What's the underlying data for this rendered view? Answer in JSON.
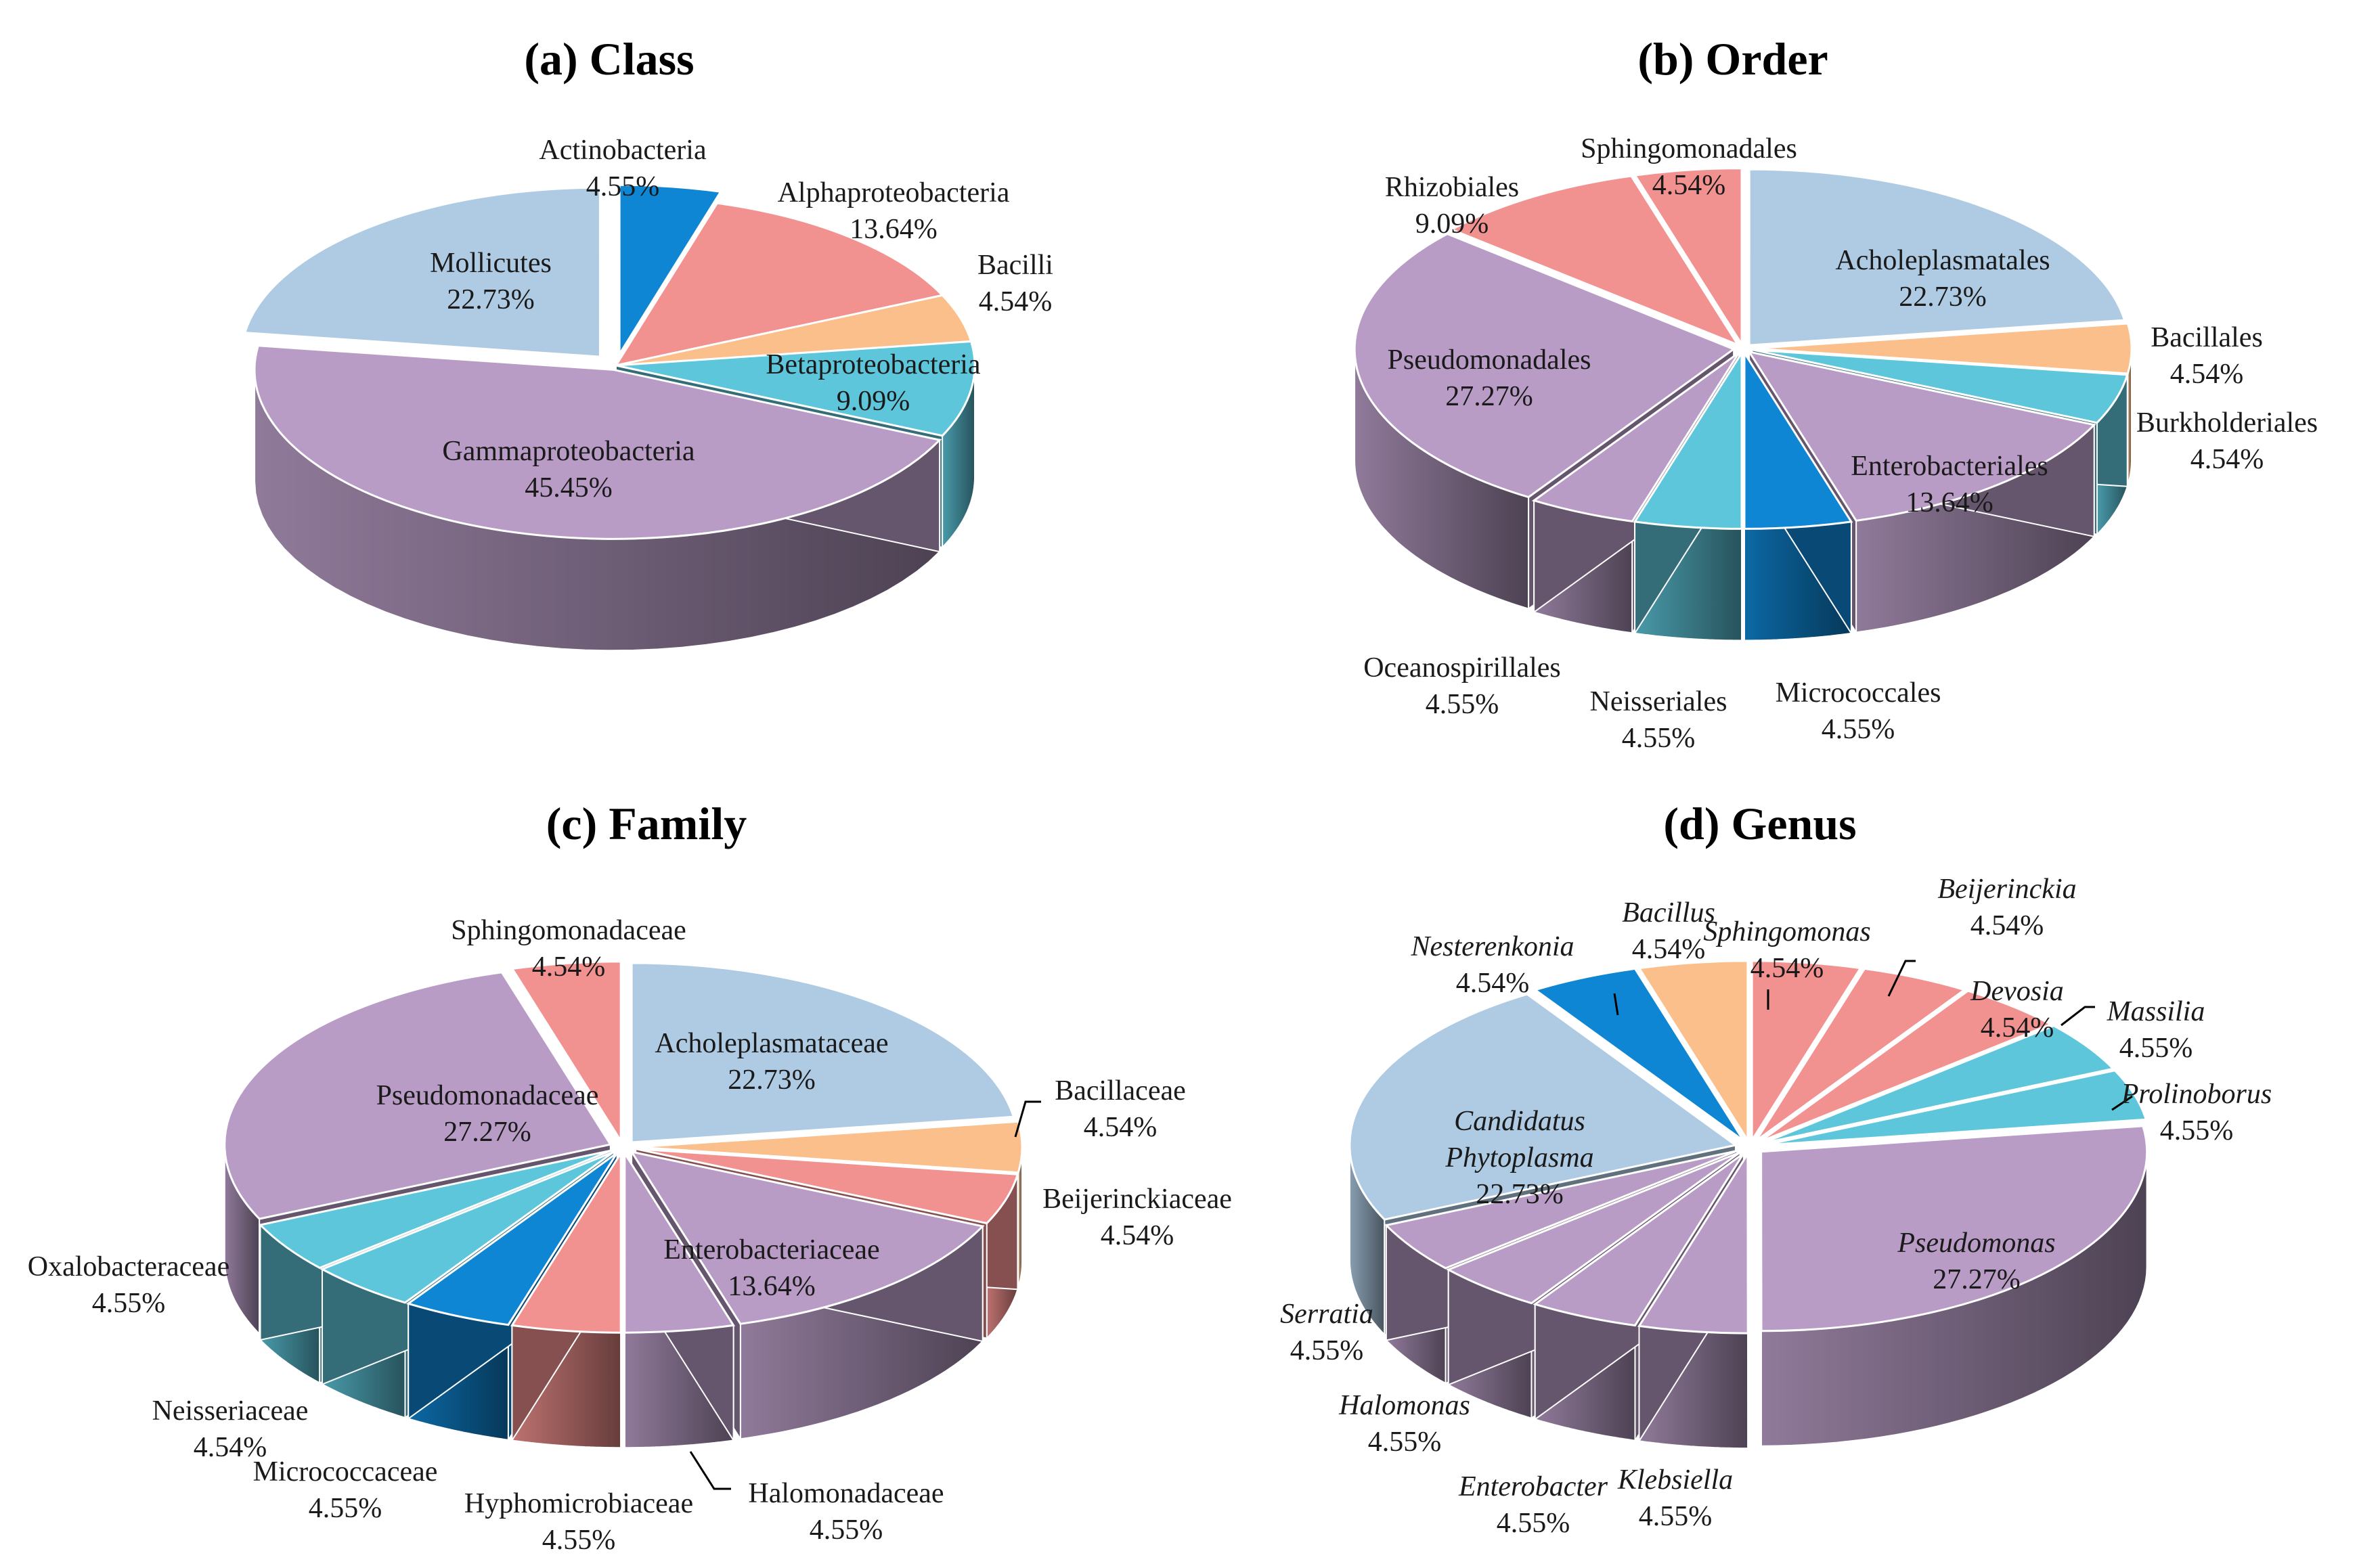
{
  "chart_data": [
    {
      "type": "pie",
      "title": "(a) Class",
      "units": "%",
      "italic_labels": false,
      "slices": [
        {
          "label": "Actinobacteria",
          "value": 4.55,
          "color": "#0f86d4"
        },
        {
          "label": "Alphaproteobacteria",
          "value": 13.64,
          "color": "#f29290"
        },
        {
          "label": "Bacilli",
          "value": 4.54,
          "color": "#fbbf8c"
        },
        {
          "label": "Betaproteobacteria",
          "value": 9.09,
          "color": "#5ec6da"
        },
        {
          "label": "Gammaproteobacteria",
          "value": 45.45,
          "color": "#b89cc6"
        },
        {
          "label": "Mollicutes",
          "value": 22.73,
          "color": "#aecbe3"
        }
      ]
    },
    {
      "type": "pie",
      "title": "(b) Order",
      "units": "%",
      "italic_labels": false,
      "slices": [
        {
          "label": "Acholeplasmatales",
          "value": 22.73,
          "color": "#aecbe3"
        },
        {
          "label": "Bacillales",
          "value": 4.54,
          "color": "#fbbf8c"
        },
        {
          "label": "Burkholderiales",
          "value": 4.54,
          "color": "#5ec6da"
        },
        {
          "label": "Enterobacteriales",
          "value": 13.64,
          "color": "#b89cc6"
        },
        {
          "label": "Micrococcales",
          "value": 4.55,
          "color": "#0f86d4"
        },
        {
          "label": "Neisseriales",
          "value": 4.55,
          "color": "#5ec6da"
        },
        {
          "label": "Oceanospirillales",
          "value": 4.55,
          "color": "#b89cc6"
        },
        {
          "label": "Pseudomonadales",
          "value": 27.27,
          "color": "#b89cc6"
        },
        {
          "label": "Rhizobiales",
          "value": 9.09,
          "color": "#f29290"
        },
        {
          "label": "Sphingomonadales",
          "value": 4.54,
          "color": "#f29290"
        }
      ]
    },
    {
      "type": "pie",
      "title": "(c) Family",
      "units": "%",
      "italic_labels": false,
      "slices": [
        {
          "label": "Acholeplasmataceae",
          "value": 22.73,
          "color": "#aecbe3"
        },
        {
          "label": "Bacillaceae",
          "value": 4.54,
          "color": "#fbbf8c"
        },
        {
          "label": "Beijerinckiaceae",
          "value": 4.54,
          "color": "#f29290"
        },
        {
          "label": "Enterobacteriaceae",
          "value": 13.64,
          "color": "#b89cc6"
        },
        {
          "label": "Halomonadaceae",
          "value": 4.55,
          "color": "#b89cc6"
        },
        {
          "label": "Hyphomicrobiaceae",
          "value": 4.55,
          "color": "#f29290"
        },
        {
          "label": "Micrococcaceae",
          "value": 4.55,
          "color": "#0f86d4"
        },
        {
          "label": "Neisseriaceae",
          "value": 4.54,
          "color": "#5ec6da"
        },
        {
          "label": "Oxalobacteraceae",
          "value": 4.55,
          "color": "#5ec6da"
        },
        {
          "label": "Pseudomonadaceae",
          "value": 27.27,
          "color": "#b89cc6"
        },
        {
          "label": "Sphingomonadaceae",
          "value": 4.54,
          "color": "#f29290"
        }
      ]
    },
    {
      "type": "pie",
      "title": "(d) Genus",
      "units": "%",
      "italic_labels": true,
      "slices": [
        {
          "label": "Sphingomonas",
          "value": 4.54,
          "color": "#f29290"
        },
        {
          "label": "Beijerinckia",
          "value": 4.54,
          "color": "#f29290"
        },
        {
          "label": "Devosia",
          "value": 4.54,
          "color": "#f29290"
        },
        {
          "label": "Massilia",
          "value": 4.55,
          "color": "#5ec6da"
        },
        {
          "label": "Prolinoborus",
          "value": 4.55,
          "color": "#5ec6da"
        },
        {
          "label": "Pseudomonas",
          "value": 27.27,
          "color": "#b89cc6"
        },
        {
          "label": "Klebsiella",
          "value": 4.55,
          "color": "#b89cc6"
        },
        {
          "label": "Enterobacter",
          "value": 4.55,
          "color": "#b89cc6"
        },
        {
          "label": "Halomonas",
          "value": 4.55,
          "color": "#b89cc6"
        },
        {
          "label": "Serratia",
          "value": 4.55,
          "color": "#b89cc6"
        },
        {
          "label": "Candidatus Phytoplasma",
          "value": 22.73,
          "color": "#aecbe3"
        },
        {
          "label": "Nesterenkonia",
          "value": 4.54,
          "color": "#0f86d4"
        },
        {
          "label": "Bacillus",
          "value": 4.54,
          "color": "#fbbf8c"
        }
      ]
    }
  ]
}
